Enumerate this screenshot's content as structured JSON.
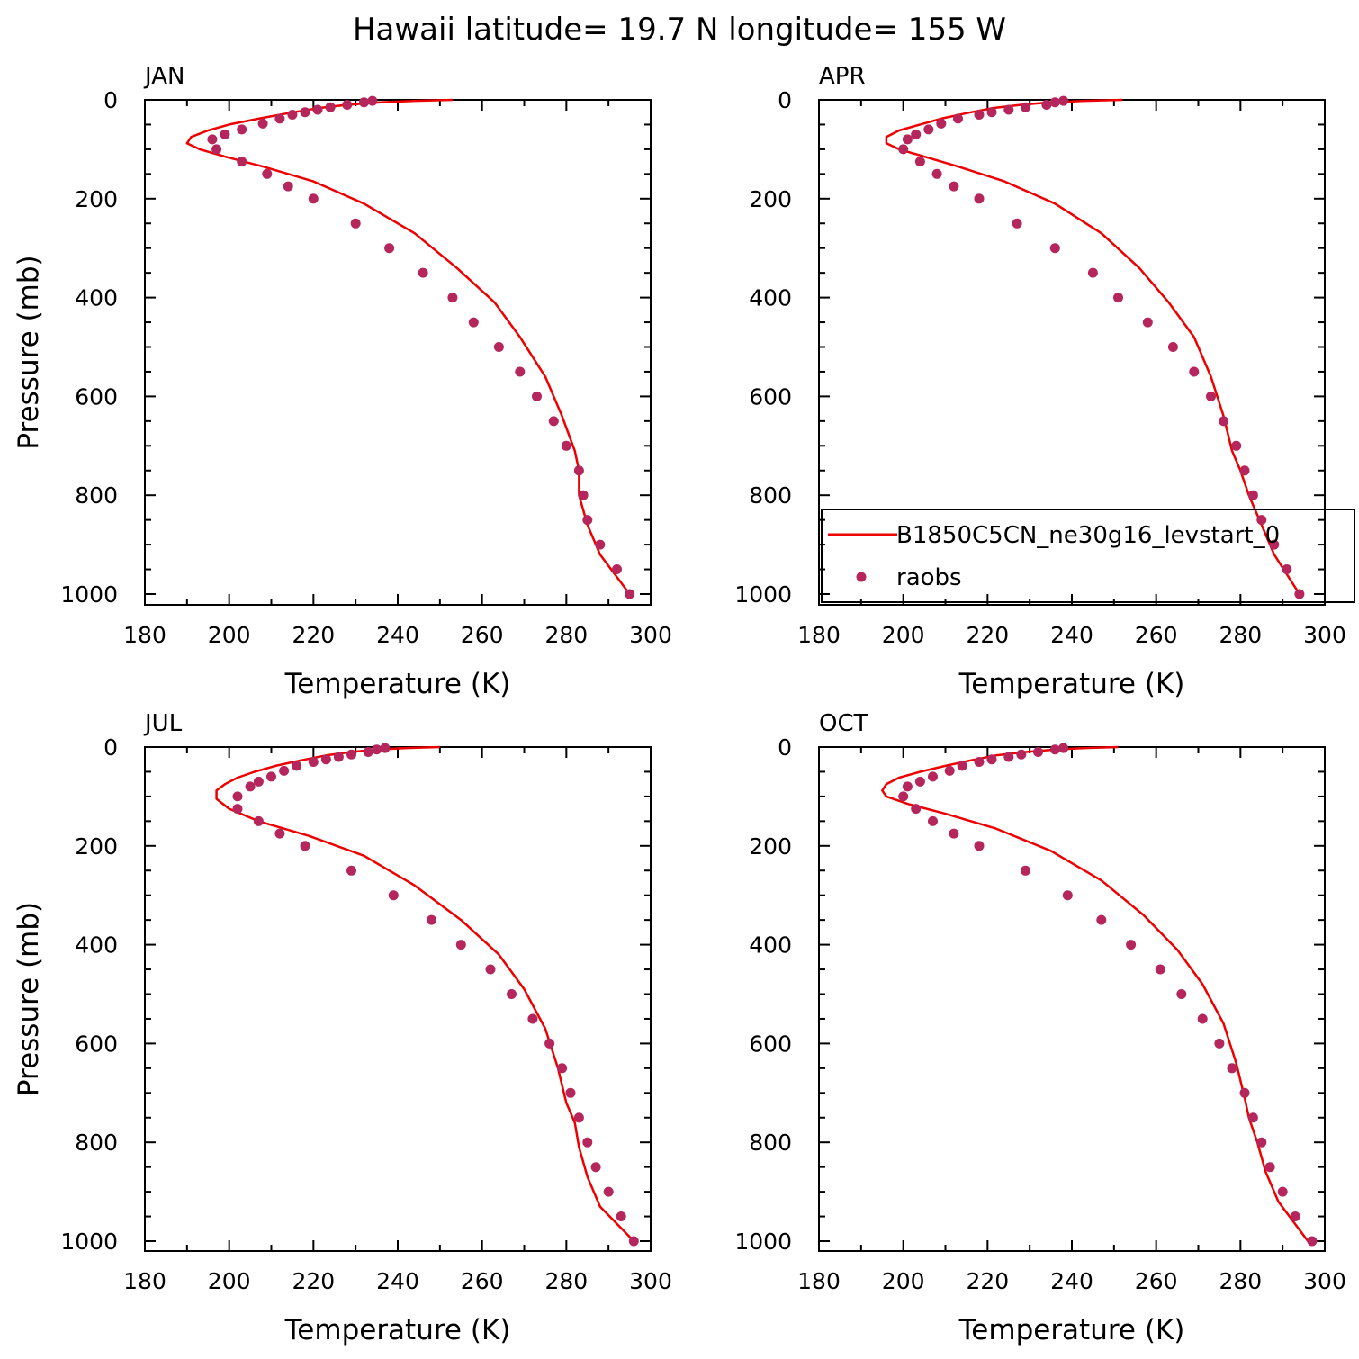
{
  "figure_title": "Hawaii  latitude= 19.7 N longitude= 155 W",
  "colors": {
    "model": "#ee0000",
    "obs": "#b5265c",
    "axis": "#000000"
  },
  "legend": {
    "model_label": "B1850C5CN_ne30g16_levstart_0",
    "obs_label": "raobs",
    "placement": "lower-right of APR panel"
  },
  "chart_data": [
    {
      "type": "line",
      "panel": "JAN",
      "xlabel": "Temperature (K)",
      "ylabel": "Pressure (mb)",
      "xlim": [
        180,
        300
      ],
      "ylim": [
        1000,
        0
      ],
      "xticks": [
        "180",
        "200",
        "220",
        "240",
        "260",
        "280",
        "300"
      ],
      "yticks": [
        "0",
        "200",
        "400",
        "600",
        "800",
        "1000"
      ],
      "grid": false,
      "series": [
        {
          "name": "B1850C5CN_ne30g16_levstart_0",
          "kind": "line",
          "x": [
            253,
            244,
            236,
            228,
            221,
            214,
            207,
            200,
            195,
            191,
            190,
            193,
            199,
            208,
            220,
            232,
            244,
            254,
            263,
            269,
            275,
            279,
            282,
            283,
            283,
            285,
            288,
            295
          ],
          "y": [
            0,
            2,
            5,
            10,
            17,
            27,
            38,
            50,
            62,
            75,
            88,
            100,
            115,
            135,
            165,
            210,
            270,
            340,
            410,
            480,
            560,
            640,
            710,
            750,
            800,
            860,
            920,
            1000
          ]
        },
        {
          "name": "raobs",
          "kind": "scatter",
          "x": [
            234,
            232,
            228,
            224,
            221,
            218,
            215,
            212,
            208,
            203,
            199,
            196,
            197,
            203,
            209,
            214,
            220,
            230,
            238,
            246,
            253,
            258,
            264,
            269,
            273,
            277,
            280,
            283,
            284,
            285,
            288,
            292,
            295
          ],
          "y": [
            2,
            5,
            10,
            15,
            20,
            25,
            30,
            38,
            48,
            60,
            70,
            80,
            100,
            125,
            150,
            175,
            200,
            250,
            300,
            350,
            400,
            450,
            500,
            550,
            600,
            650,
            700,
            750,
            800,
            850,
            900,
            950,
            1000
          ]
        }
      ]
    },
    {
      "type": "line",
      "panel": "APR",
      "xlabel": "Temperature (K)",
      "ylabel": "",
      "xlim": [
        180,
        300
      ],
      "ylim": [
        1000,
        0
      ],
      "xticks": [
        "180",
        "200",
        "220",
        "240",
        "260",
        "280",
        "300"
      ],
      "yticks": [
        "0",
        "200",
        "400",
        "600",
        "800",
        "1000"
      ],
      "grid": false,
      "series": [
        {
          "name": "B1850C5CN_ne30g16_levstart_0",
          "kind": "line",
          "x": [
            252,
            243,
            235,
            228,
            221,
            215,
            209,
            204,
            199,
            196,
            196,
            199,
            205,
            213,
            224,
            236,
            247,
            256,
            263,
            269,
            273,
            276,
            278,
            280,
            282,
            285,
            288,
            294
          ],
          "y": [
            0,
            2,
            5,
            10,
            17,
            27,
            38,
            50,
            62,
            75,
            88,
            100,
            115,
            135,
            165,
            210,
            270,
            340,
            410,
            480,
            560,
            640,
            710,
            750,
            800,
            860,
            920,
            1000
          ]
        },
        {
          "name": "raobs",
          "kind": "scatter",
          "x": [
            238,
            236,
            234,
            229,
            225,
            221,
            218,
            213,
            209,
            206,
            203,
            201,
            200,
            204,
            208,
            212,
            218,
            227,
            236,
            245,
            251,
            258,
            264,
            269,
            273,
            276,
            279,
            281,
            283,
            285,
            288,
            291,
            294
          ],
          "y": [
            2,
            5,
            10,
            15,
            20,
            25,
            30,
            38,
            48,
            60,
            70,
            80,
            100,
            125,
            150,
            175,
            200,
            250,
            300,
            350,
            400,
            450,
            500,
            550,
            600,
            650,
            700,
            750,
            800,
            850,
            900,
            950,
            1000
          ]
        }
      ]
    },
    {
      "type": "line",
      "panel": "JUL",
      "xlabel": "Temperature (K)",
      "ylabel": "Pressure (mb)",
      "xlim": [
        180,
        300
      ],
      "ylim": [
        1000,
        0
      ],
      "xticks": [
        "180",
        "200",
        "220",
        "240",
        "260",
        "280",
        "300"
      ],
      "yticks": [
        "0",
        "200",
        "400",
        "600",
        "800",
        "1000"
      ],
      "grid": false,
      "series": [
        {
          "name": "B1850C5CN_ne30g16_levstart_0",
          "kind": "line",
          "x": [
            250,
            242,
            235,
            229,
            223,
            217,
            211,
            206,
            202,
            199,
            197,
            197,
            200,
            207,
            219,
            232,
            244,
            255,
            264,
            270,
            275,
            278,
            280,
            282,
            283,
            285,
            288,
            296
          ],
          "y": [
            0,
            2,
            5,
            10,
            17,
            27,
            38,
            50,
            62,
            75,
            88,
            105,
            125,
            150,
            180,
            220,
            280,
            350,
            420,
            490,
            570,
            650,
            720,
            760,
            810,
            870,
            930,
            1000
          ]
        },
        {
          "name": "raobs",
          "kind": "scatter",
          "x": [
            237,
            235,
            233,
            229,
            226,
            223,
            220,
            216,
            213,
            210,
            207,
            205,
            202,
            202,
            207,
            212,
            218,
            229,
            239,
            248,
            255,
            262,
            267,
            272,
            276,
            279,
            281,
            283,
            285,
            287,
            290,
            293,
            296
          ],
          "y": [
            2,
            5,
            10,
            15,
            20,
            25,
            30,
            38,
            48,
            60,
            70,
            80,
            100,
            125,
            150,
            175,
            200,
            250,
            300,
            350,
            400,
            450,
            500,
            550,
            600,
            650,
            700,
            750,
            800,
            850,
            900,
            950,
            1000
          ]
        }
      ]
    },
    {
      "type": "line",
      "panel": "OCT",
      "xlabel": "Temperature (K)",
      "ylabel": "",
      "xlim": [
        180,
        300
      ],
      "ylim": [
        1000,
        0
      ],
      "xticks": [
        "180",
        "200",
        "220",
        "240",
        "260",
        "280",
        "300"
      ],
      "yticks": [
        "0",
        "200",
        "400",
        "600",
        "800",
        "1000"
      ],
      "grid": false,
      "series": [
        {
          "name": "B1850C5CN_ne30g16_levstart_0",
          "kind": "line",
          "x": [
            251,
            243,
            236,
            229,
            222,
            216,
            210,
            204,
            199,
            196,
            195,
            196,
            201,
            210,
            222,
            235,
            247,
            257,
            265,
            271,
            276,
            279,
            281,
            282,
            284,
            286,
            289,
            296
          ],
          "y": [
            0,
            2,
            5,
            10,
            17,
            27,
            38,
            50,
            62,
            75,
            88,
            100,
            115,
            135,
            165,
            210,
            270,
            340,
            410,
            480,
            560,
            640,
            710,
            750,
            800,
            860,
            920,
            1000
          ]
        },
        {
          "name": "raobs",
          "kind": "scatter",
          "x": [
            238,
            236,
            232,
            228,
            225,
            221,
            218,
            214,
            211,
            207,
            204,
            201,
            200,
            203,
            207,
            212,
            218,
            229,
            239,
            247,
            254,
            261,
            266,
            271,
            275,
            278,
            281,
            283,
            285,
            287,
            290,
            293,
            297
          ],
          "y": [
            2,
            5,
            10,
            15,
            20,
            25,
            30,
            38,
            48,
            60,
            70,
            80,
            100,
            125,
            150,
            175,
            200,
            250,
            300,
            350,
            400,
            450,
            500,
            550,
            600,
            650,
            700,
            750,
            800,
            850,
            900,
            950,
            1000
          ]
        }
      ]
    }
  ]
}
